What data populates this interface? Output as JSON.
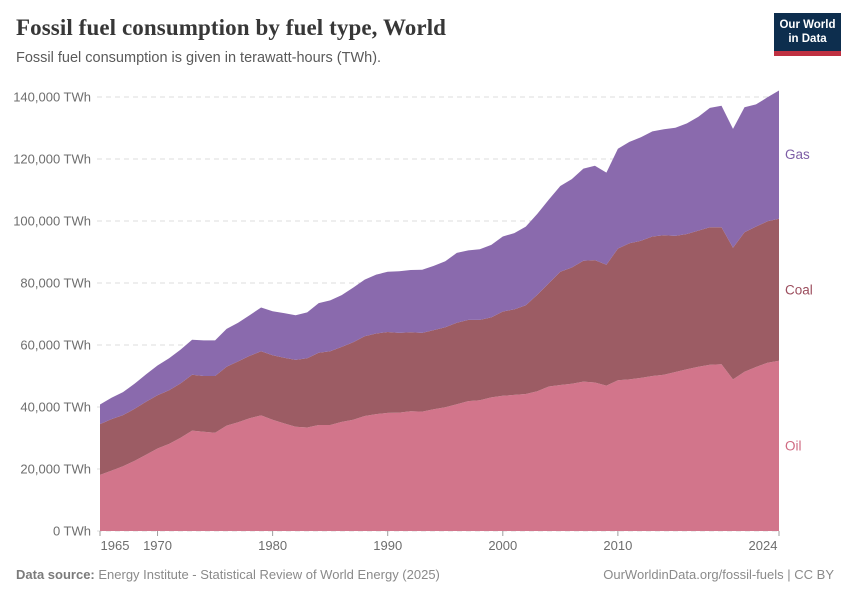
{
  "header": {
    "title": "Fossil fuel consumption by fuel type, World",
    "subtitle": "Fossil fuel consumption is given in terawatt-hours (TWh).",
    "logo": {
      "line1": "Our World",
      "line2": "in Data",
      "bg": "#0d2e4e",
      "accent": "#bf3041"
    }
  },
  "chart_data": {
    "type": "area",
    "stacked": true,
    "title": "Fossil fuel consumption by fuel type, World",
    "unit": "TWh",
    "grid": "horizontal-dashed",
    "legend_position": "right-of-plot",
    "xlim": [
      1965,
      2024
    ],
    "ylim": [
      0,
      140000
    ],
    "x": [
      1965,
      1966,
      1967,
      1968,
      1969,
      1970,
      1971,
      1972,
      1973,
      1974,
      1975,
      1976,
      1977,
      1978,
      1979,
      1980,
      1981,
      1982,
      1983,
      1984,
      1985,
      1986,
      1987,
      1988,
      1989,
      1990,
      1991,
      1992,
      1993,
      1994,
      1995,
      1996,
      1997,
      1998,
      1999,
      2000,
      2001,
      2002,
      2003,
      2004,
      2005,
      2006,
      2007,
      2008,
      2009,
      2010,
      2011,
      2012,
      2013,
      2014,
      2015,
      2016,
      2017,
      2018,
      2019,
      2020,
      2021,
      2022,
      2023,
      2024
    ],
    "series": [
      {
        "name": "Oil",
        "color": "#d2758b",
        "label_color": "#d06a82",
        "values": [
          18100,
          19500,
          20900,
          22600,
          24600,
          26600,
          28100,
          30100,
          32400,
          32000,
          31700,
          34000,
          35100,
          36400,
          37300,
          35900,
          34700,
          33600,
          33400,
          34200,
          34200,
          35200,
          35900,
          37100,
          37700,
          38100,
          38200,
          38600,
          38500,
          39300,
          39900,
          40900,
          41900,
          42200,
          43100,
          43600,
          43900,
          44200,
          45100,
          46600,
          47100,
          47500,
          48200,
          47900,
          46900,
          48600,
          48900,
          49400,
          50000,
          50400,
          51300,
          52200,
          53000,
          53600,
          53800,
          48900,
          51400,
          52900,
          54300,
          54900
        ]
      },
      {
        "name": "Coal",
        "color": "#9c5c64",
        "label_color": "#9c4e5e",
        "values": [
          16400,
          16600,
          16500,
          16800,
          17100,
          17200,
          17300,
          17500,
          18000,
          18000,
          18300,
          19000,
          19600,
          20100,
          20700,
          20800,
          21200,
          21600,
          22300,
          23300,
          23800,
          24200,
          25000,
          25700,
          26000,
          26100,
          25700,
          25500,
          25400,
          25500,
          25800,
          26300,
          26200,
          25900,
          25800,
          27200,
          27600,
          28600,
          31100,
          33300,
          36500,
          37500,
          39000,
          39500,
          39000,
          42500,
          43900,
          44200,
          45000,
          45000,
          43900,
          43600,
          43900,
          44400,
          44200,
          42500,
          45000,
          45300,
          45600,
          45800
        ]
      },
      {
        "name": "Gas",
        "color": "#8a6aad",
        "label_color": "#7d5da6",
        "values": [
          6300,
          6900,
          7400,
          8100,
          8800,
          9600,
          10300,
          10900,
          11300,
          11500,
          11500,
          12200,
          12500,
          13100,
          14100,
          14200,
          14400,
          14400,
          14800,
          16000,
          16400,
          16700,
          17600,
          18300,
          19000,
          19400,
          19900,
          20100,
          20400,
          20700,
          21300,
          22500,
          22400,
          22800,
          23400,
          24200,
          24600,
          25400,
          26100,
          27000,
          27700,
          28500,
          29700,
          30400,
          29700,
          32200,
          32700,
          33400,
          33900,
          34200,
          34900,
          35700,
          36700,
          38500,
          39200,
          38300,
          40300,
          39400,
          40000,
          41400
        ]
      }
    ],
    "y_ticks": [
      {
        "value": 0,
        "label": "0 TWh"
      },
      {
        "value": 20000,
        "label": "20,000 TWh"
      },
      {
        "value": 40000,
        "label": "40,000 TWh"
      },
      {
        "value": 60000,
        "label": "60,000 TWh"
      },
      {
        "value": 80000,
        "label": "80,000 TWh"
      },
      {
        "value": 100000,
        "label": "100,000 TWh"
      },
      {
        "value": 120000,
        "label": "120,000 TWh"
      },
      {
        "value": 140000,
        "label": "140,000 TWh"
      }
    ],
    "x_ticks": [
      {
        "value": 1965,
        "label": "1965"
      },
      {
        "value": 1970,
        "label": "1970"
      },
      {
        "value": 1980,
        "label": "1980"
      },
      {
        "value": 1990,
        "label": "1990"
      },
      {
        "value": 2000,
        "label": "2000"
      },
      {
        "value": 2010,
        "label": "2010"
      },
      {
        "value": 2024,
        "label": "2024"
      }
    ]
  },
  "footer": {
    "source_label": "Data source:",
    "source_text": " Energy Institute - Statistical Review of World Energy (2025)",
    "url": "OurWorldinData.org/fossil-fuels",
    "separator": " | ",
    "license": "CC BY"
  }
}
